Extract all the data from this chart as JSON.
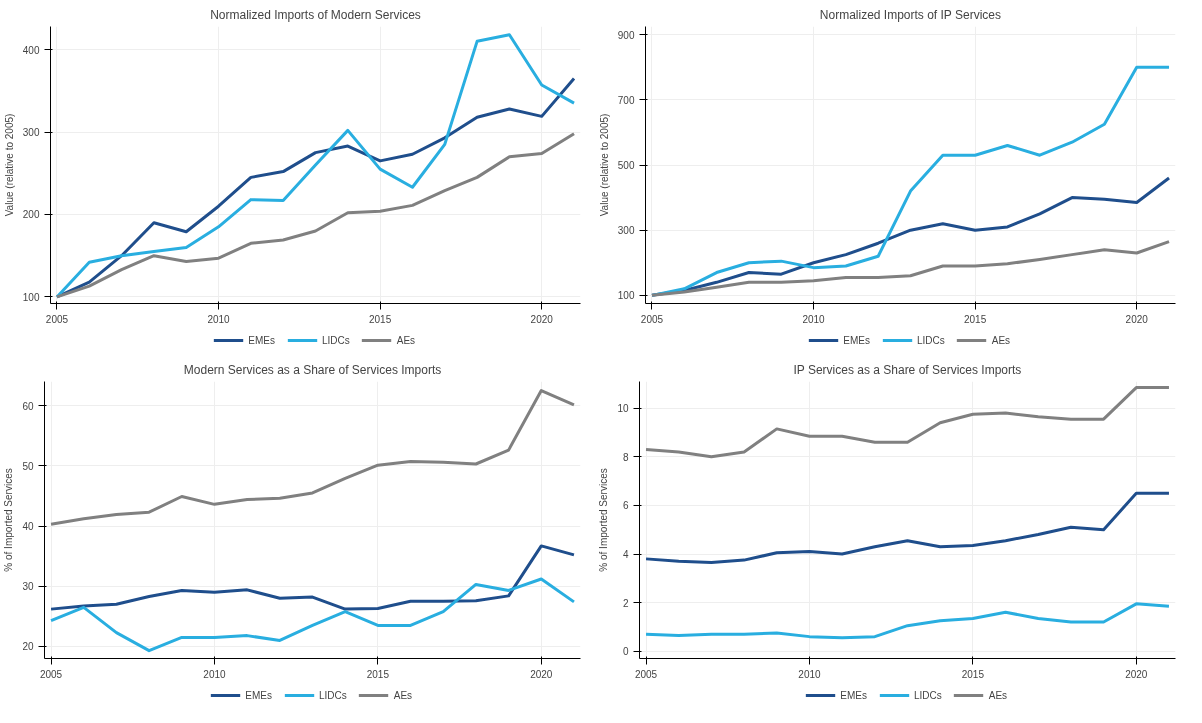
{
  "chart_data": [
    {
      "type": "line",
      "title": "Normalized Imports of Modern Services",
      "ylabel": "Value (relative to 2005)",
      "x": [
        2005,
        2006,
        2007,
        2008,
        2009,
        2010,
        2011,
        2012,
        2013,
        2014,
        2015,
        2016,
        2017,
        2018,
        2019,
        2020,
        2021
      ],
      "xlim": [
        2004.8,
        2021.2
      ],
      "ylim": [
        92,
        428
      ],
      "xticks": [
        2005,
        2010,
        2015,
        2020
      ],
      "yticks": [
        100,
        200,
        300,
        400
      ],
      "grid": true,
      "legend": "bottom",
      "line_style": "solid",
      "series": [
        {
          "name": "EMEs",
          "color": "#1f4e8c",
          "values": [
            100,
            118,
            150,
            190,
            179,
            210,
            245,
            252,
            275,
            283,
            265,
            273,
            293,
            318,
            328,
            319,
            365
          ]
        },
        {
          "name": "LIDCs",
          "color": "#29aee0",
          "values": [
            100,
            142,
            150,
            155,
            160,
            185,
            218,
            217,
            260,
            302,
            255,
            233,
            285,
            410,
            418,
            357,
            335
          ]
        },
        {
          "name": "AEs",
          "color": "#808080",
          "values": [
            100,
            113,
            133,
            150,
            143,
            147,
            165,
            169,
            180,
            202,
            204,
            211,
            229,
            245,
            270,
            274,
            298
          ]
        }
      ]
    },
    {
      "type": "line",
      "title": "Normalized Imports of IP Services",
      "ylabel": "Value (relative to 2005)",
      "x": [
        2005,
        2006,
        2007,
        2008,
        2009,
        2010,
        2011,
        2012,
        2013,
        2014,
        2015,
        2016,
        2017,
        2018,
        2019,
        2020,
        2021
      ],
      "xlim": [
        2004.8,
        2021.2
      ],
      "ylim": [
        75,
        925
      ],
      "xticks": [
        2005,
        2010,
        2015,
        2020
      ],
      "yticks": [
        100,
        300,
        500,
        700,
        900
      ],
      "grid": true,
      "legend": "bottom",
      "line_style": "solid",
      "series": [
        {
          "name": "EMEs",
          "color": "#1f4e8c",
          "values": [
            100,
            115,
            140,
            170,
            165,
            200,
            225,
            260,
            300,
            320,
            300,
            310,
            350,
            400,
            395,
            385,
            460
          ]
        },
        {
          "name": "LIDCs",
          "color": "#29aee0",
          "values": [
            100,
            120,
            170,
            200,
            205,
            185,
            190,
            220,
            420,
            530,
            530,
            560,
            530,
            570,
            625,
            800,
            800
          ]
        },
        {
          "name": "AEs",
          "color": "#808080",
          "values": [
            100,
            110,
            125,
            140,
            140,
            145,
            155,
            155,
            160,
            190,
            190,
            197,
            210,
            225,
            240,
            230,
            265
          ]
        }
      ]
    },
    {
      "type": "line",
      "title": "Modern Services as a Share of Services Imports",
      "ylabel": "% of Imported Services",
      "x": [
        2005,
        2006,
        2007,
        2008,
        2009,
        2010,
        2011,
        2012,
        2013,
        2014,
        2015,
        2016,
        2017,
        2018,
        2019,
        2020,
        2021
      ],
      "xlim": [
        2004.8,
        2021.2
      ],
      "ylim": [
        18,
        64
      ],
      "xticks": [
        2005,
        2010,
        2015,
        2020
      ],
      "yticks": [
        20,
        30,
        40,
        50,
        60
      ],
      "grid": true,
      "legend": "bottom",
      "line_style": "solid",
      "series": [
        {
          "name": "EMEs",
          "color": "#1f4e8c",
          "values": [
            26.2,
            26.7,
            27.0,
            28.3,
            29.3,
            29.0,
            29.4,
            28.0,
            28.2,
            26.2,
            26.3,
            27.5,
            27.5,
            27.6,
            28.4,
            36.7,
            35.2
          ]
        },
        {
          "name": "LIDCs",
          "color": "#29aee0",
          "values": [
            24.3,
            26.5,
            22.3,
            19.3,
            21.5,
            21.5,
            21.8,
            21.0,
            23.5,
            25.8,
            23.5,
            23.5,
            25.8,
            30.3,
            29.3,
            31.2,
            27.4
          ]
        },
        {
          "name": "AEs",
          "color": "#808080",
          "values": [
            40.3,
            41.2,
            41.9,
            42.3,
            44.9,
            43.6,
            44.4,
            44.6,
            45.5,
            47.9,
            50.1,
            50.7,
            50.6,
            50.3,
            52.6,
            62.5,
            60.1
          ]
        }
      ]
    },
    {
      "type": "line",
      "title": "IP Services as a Share of Services Imports",
      "ylabel": "% of Imported Services",
      "x": [
        2005,
        2006,
        2007,
        2008,
        2009,
        2010,
        2011,
        2012,
        2013,
        2014,
        2015,
        2016,
        2017,
        2018,
        2019,
        2020,
        2021
      ],
      "xlim": [
        2004.8,
        2021.2
      ],
      "ylim": [
        -0.3,
        11.1
      ],
      "xticks": [
        2005,
        2010,
        2015,
        2020
      ],
      "yticks": [
        0,
        2,
        4,
        6,
        8,
        10
      ],
      "grid": true,
      "legend": "bottom",
      "line_style": "solid",
      "series": [
        {
          "name": "EMEs",
          "color": "#1f4e8c",
          "values": [
            3.8,
            3.7,
            3.65,
            3.75,
            4.05,
            4.1,
            4.0,
            4.3,
            4.55,
            4.3,
            4.35,
            4.55,
            4.8,
            5.1,
            5.0,
            6.5,
            6.5
          ]
        },
        {
          "name": "LIDCs",
          "color": "#29aee0",
          "values": [
            0.7,
            0.65,
            0.7,
            0.7,
            0.75,
            0.6,
            0.55,
            0.6,
            1.05,
            1.25,
            1.35,
            1.6,
            1.35,
            1.2,
            1.2,
            1.95,
            1.85
          ]
        },
        {
          "name": "AEs",
          "color": "#808080",
          "values": [
            8.3,
            8.2,
            8.0,
            8.2,
            9.15,
            8.85,
            8.85,
            8.6,
            8.6,
            9.4,
            9.75,
            9.8,
            9.65,
            9.55,
            9.55,
            10.85,
            10.85
          ]
        }
      ]
    }
  ]
}
